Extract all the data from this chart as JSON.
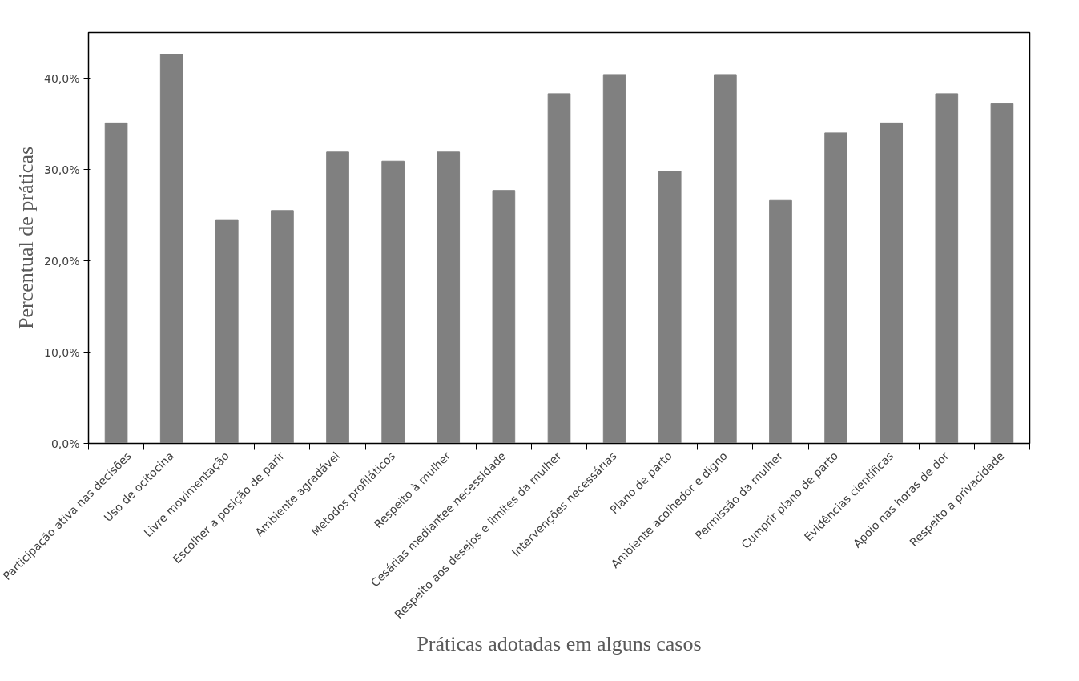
{
  "chart_data": {
    "type": "bar",
    "xlabel": "Práticas adotadas em alguns casos",
    "ylabel": "Percentual de práticas",
    "categories": [
      "Participação ativa nas decisões",
      "Uso de ocitocina",
      "Livre movimentação",
      "Escolher a posição de parir",
      "Ambiente agradável",
      "Métodos profiláticos",
      "Respeito à mulher",
      "Cesárias mediantee necessidade",
      "Respeito aos desejos e limites da mulher",
      "Intervenções necessárias",
      "Plano de parto",
      "Ambiente acolhedor e digno",
      "Permissão da mulher",
      "Cumprir plano de parto",
      "Evidências científicas",
      "Apoio nas horas de dor",
      "Respeito a privacidade"
    ],
    "values": [
      35.1,
      42.6,
      24.5,
      25.5,
      31.9,
      30.9,
      31.9,
      27.7,
      38.3,
      40.4,
      29.8,
      40.4,
      26.6,
      34.0,
      35.1,
      38.3,
      37.2
    ],
    "color": "#808080",
    "ylim": [
      0,
      45
    ],
    "yticks": [
      {
        "value": 0,
        "label": "0,0%"
      },
      {
        "value": 10,
        "label": "10,0%"
      },
      {
        "value": 20,
        "label": "20,0%"
      },
      {
        "value": 30,
        "label": "30,0%"
      },
      {
        "value": 40,
        "label": "40,0%"
      }
    ],
    "grid": false
  }
}
